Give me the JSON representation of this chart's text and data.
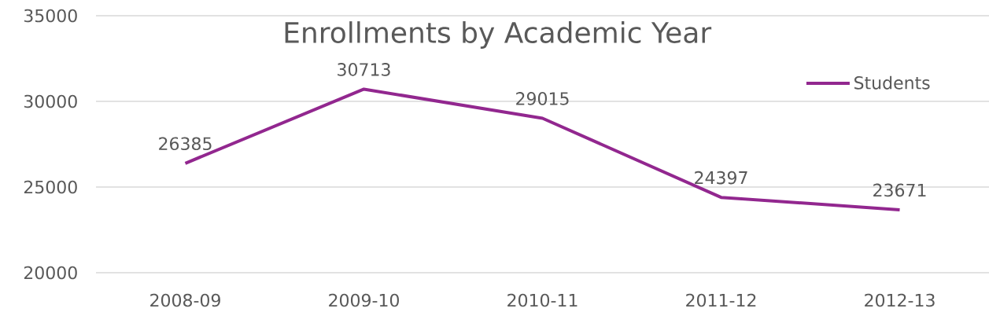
{
  "chart_data": {
    "type": "line",
    "title": "Enrollments by Academic Year",
    "categories": [
      "2008-09",
      "2009-10",
      "2010-11",
      "2011-12",
      "2012-13"
    ],
    "series": [
      {
        "name": "Students",
        "color": "#92278f",
        "values": [
          26385,
          30713,
          29015,
          24397,
          23671
        ]
      }
    ],
    "ylim": [
      20000,
      35000
    ],
    "yticks": [
      20000,
      25000,
      30000,
      35000
    ],
    "grid": "y",
    "legend": "top right",
    "data_labels": true,
    "marker": "none",
    "line_style": "solid"
  }
}
